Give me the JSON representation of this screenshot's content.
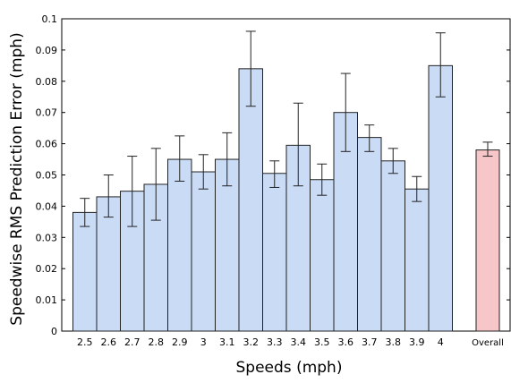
{
  "chart_data": {
    "type": "bar",
    "title": "",
    "xlabel": "Speeds (mph)",
    "ylabel": "Speedwise RMS Prediction Error (mph)",
    "ylim": [
      0,
      0.1
    ],
    "yticks": [
      "0",
      "0.01",
      "0.02",
      "0.03",
      "0.04",
      "0.05",
      "0.06",
      "0.07",
      "0.08",
      "0.09",
      "0.1"
    ],
    "grid": false,
    "categories": [
      "2.5",
      "2.6",
      "2.7",
      "2.8",
      "2.9",
      "3",
      "3.1",
      "3.2",
      "3.3",
      "3.4",
      "3.5",
      "3.6",
      "3.7",
      "3.8",
      "3.9",
      "4"
    ],
    "values": [
      0.038,
      0.043,
      0.0448,
      0.047,
      0.055,
      0.051,
      0.055,
      0.084,
      0.0505,
      0.0595,
      0.0485,
      0.07,
      0.062,
      0.0545,
      0.0455,
      0.085
    ],
    "error_low": [
      0.0335,
      0.0365,
      0.0335,
      0.0355,
      0.048,
      0.0455,
      0.0465,
      0.072,
      0.046,
      0.0465,
      0.0435,
      0.0575,
      0.0575,
      0.0505,
      0.0415,
      0.075
    ],
    "error_high": [
      0.0425,
      0.05,
      0.056,
      0.0585,
      0.0625,
      0.0565,
      0.0635,
      0.096,
      0.0545,
      0.073,
      0.0535,
      0.0825,
      0.066,
      0.0585,
      0.0495,
      0.0955
    ],
    "overall": {
      "label": "Overall",
      "value": 0.058,
      "error_low": 0.056,
      "error_high": 0.0605
    },
    "colors": {
      "bar_fill": "#c9dbf5",
      "overall_fill": "#f7c6c8",
      "bar_stroke": "#222222",
      "axis": "#000000"
    }
  }
}
